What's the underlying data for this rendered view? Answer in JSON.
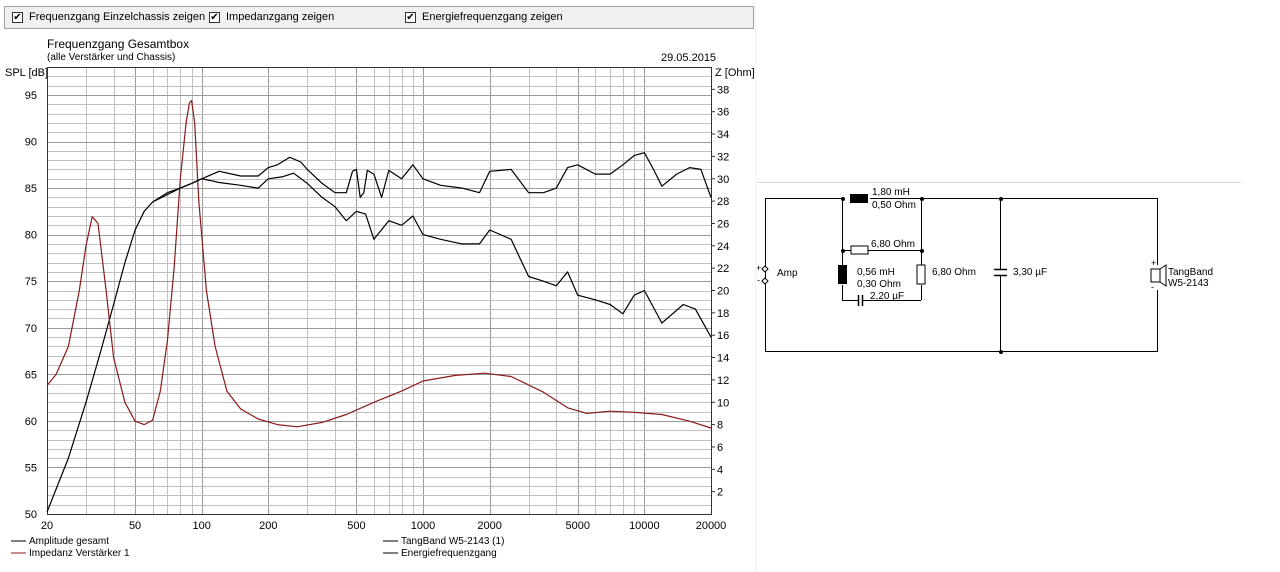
{
  "toolbar": {
    "items": [
      {
        "label": "Frequenzgang Einzelchassis zeigen",
        "checked": true
      },
      {
        "label": "Impedanzgang zeigen",
        "checked": true
      },
      {
        "label": "Energiefrequenzgang zeigen",
        "checked": true
      }
    ]
  },
  "chart_data": {
    "type": "line",
    "title": "Frequenzgang Gesamtbox",
    "subtitle": "(alle Verstärker und Chassis)",
    "date": "29.05.2015",
    "xscale": "log",
    "xlim": [
      20,
      20000
    ],
    "ylim": [
      50,
      98
    ],
    "y2lim": [
      0,
      40
    ],
    "ylabel": "SPL [dB]",
    "y2label": "Z [Ohm]",
    "xticks": [
      "20",
      "50",
      "100",
      "200",
      "500",
      "1000",
      "2000",
      "5000",
      "10000",
      "20000"
    ],
    "yticks": [
      "50",
      "55",
      "60",
      "65",
      "70",
      "75",
      "80",
      "85",
      "90",
      "95"
    ],
    "y2ticks": [
      "2",
      "4",
      "6",
      "8",
      "10",
      "12",
      "14",
      "16",
      "18",
      "20",
      "22",
      "24",
      "26",
      "28",
      "30",
      "32",
      "34",
      "36",
      "38"
    ],
    "grid": true,
    "legend_position": "bottom",
    "colors": {
      "amplitude": "#000000",
      "impedance": "#8b1a1a",
      "chassis": "#000000",
      "energy": "#000000",
      "grid": "#c0c0c0"
    },
    "series": [
      {
        "name": "Amplitude gesamt",
        "axis": "left",
        "color": "#000000",
        "x": [
          20,
          25,
          30,
          35,
          40,
          45,
          50,
          55,
          60,
          70,
          80,
          90,
          100,
          110,
          120,
          150,
          180,
          200,
          230,
          260,
          300,
          350,
          400,
          450,
          500,
          550,
          600,
          700,
          800,
          900,
          1000,
          1200,
          1500,
          1800,
          2000,
          2500,
          3000,
          3500,
          4000,
          4500,
          5000,
          6000,
          7000,
          8000,
          9000,
          10000,
          12000,
          15000,
          17000,
          20000
        ],
        "y": [
          50.2,
          56,
          62,
          67.5,
          72.5,
          77,
          80.5,
          82.5,
          83.5,
          84.3,
          85,
          85.5,
          86,
          85.8,
          85.6,
          85.3,
          85,
          86,
          86.2,
          86.6,
          85.5,
          84,
          83,
          81.5,
          82.5,
          82.2,
          79.5,
          81.5,
          81,
          82,
          80,
          79.5,
          79,
          79,
          80.5,
          79.5,
          75.5,
          75,
          74.5,
          76,
          73.5,
          73,
          72.5,
          71.5,
          73.5,
          74,
          70.5,
          72.5,
          72,
          69
        ]
      },
      {
        "name": "Impedanz Verstärker 1",
        "axis": "right",
        "color": "#8b1a1a",
        "x": [
          20,
          22,
          25,
          28,
          30,
          32,
          34,
          37,
          40,
          45,
          50,
          55,
          60,
          65,
          70,
          75,
          80,
          85,
          88,
          90,
          93,
          97,
          105,
          115,
          130,
          150,
          180,
          220,
          270,
          350,
          450,
          600,
          800,
          1000,
          1400,
          1900,
          2500,
          3500,
          4500,
          5500,
          7000,
          9000,
          12000,
          16000,
          20000
        ],
        "y": [
          11.5,
          12.5,
          15,
          20,
          24,
          26.6,
          26,
          20,
          14,
          10,
          8.3,
          8,
          8.4,
          11,
          15.5,
          22,
          30,
          35,
          36.8,
          37,
          35,
          28,
          20,
          15,
          11,
          9.4,
          8.5,
          8.0,
          7.8,
          8.2,
          8.9,
          10,
          11,
          11.9,
          12.4,
          12.6,
          12.3,
          10.9,
          9.5,
          9.0,
          9.2,
          9.1,
          8.9,
          8.3,
          7.7
        ]
      },
      {
        "name": "TangBand W5-2143 (1)",
        "axis": "left",
        "color": "#000000",
        "x": [
          60,
          70,
          80,
          90,
          100,
          120,
          150,
          180,
          200,
          220,
          250,
          280,
          300,
          350,
          400,
          450,
          480,
          500,
          520,
          540,
          560,
          600,
          650,
          700,
          800,
          900,
          1000,
          1200,
          1500,
          1800,
          2000,
          2500,
          3000,
          3500,
          4000,
          4500,
          5000,
          6000,
          7000,
          8000,
          9000,
          10000,
          11000,
          12000,
          14000,
          16000,
          18000,
          20000
        ],
        "y": [
          83.5,
          84.5,
          85,
          85.5,
          86,
          86.8,
          86.3,
          86.3,
          87.2,
          87.5,
          88.3,
          87.8,
          87,
          85.5,
          84.5,
          84.5,
          86.8,
          87,
          84,
          84.5,
          86.9,
          86.5,
          84,
          86.9,
          86,
          87.5,
          86,
          85.3,
          85,
          84.5,
          86.8,
          87,
          84.5,
          84.5,
          85,
          87.2,
          87.5,
          86.5,
          86.5,
          87.5,
          88.5,
          88.8,
          87,
          85.2,
          86.5,
          87.2,
          87,
          84
        ]
      },
      {
        "name": "Energiefrequenzgang",
        "axis": "left",
        "color": "#000000",
        "x": [],
        "y": []
      }
    ]
  },
  "schematic": {
    "amp_label": "Amp",
    "plus_sign": "+",
    "minus_sign": "-",
    "inductor1_value": "1,80 mH",
    "inductor1_resistance": "0,50 Ohm",
    "resistor1_value": "6,80 Ohm",
    "inductor2_value": "0,56 mH",
    "inductor2_resistance": "0,30 Ohm",
    "capacitor1_value": "2,20 µF",
    "resistor2_value": "6,80 Ohm",
    "capacitor2_value": "3,30 µF",
    "speaker_brand": "TangBand",
    "speaker_model": "W5-2143"
  }
}
